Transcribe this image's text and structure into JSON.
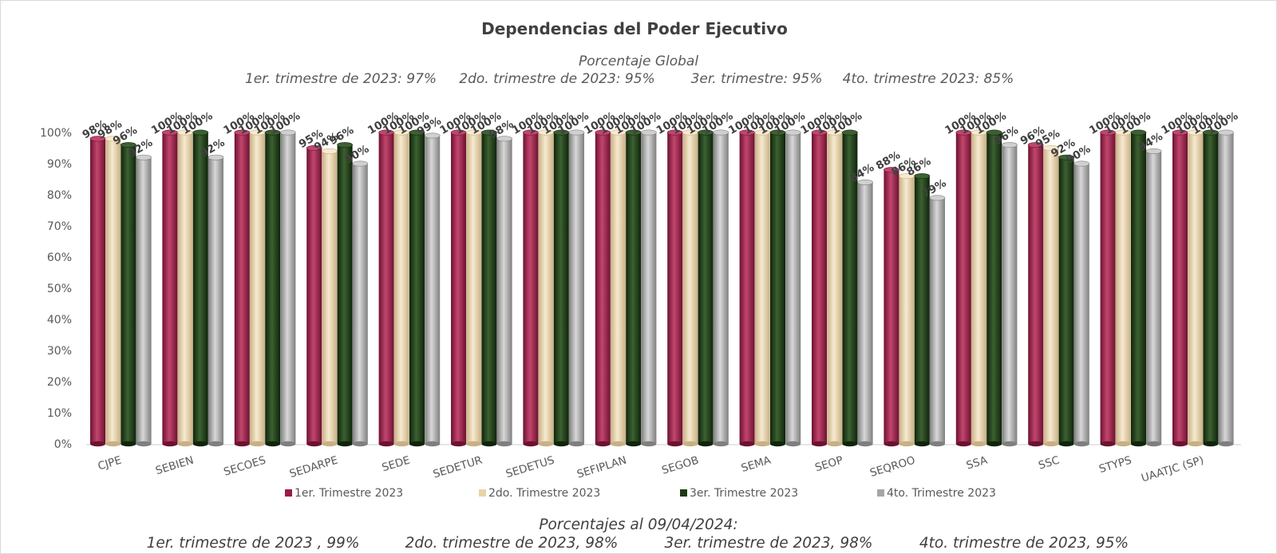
{
  "colors": {
    "series": [
      "#9b1c45",
      "#e9d3a6",
      "#1b3a13",
      "#a6a6a6"
    ],
    "series_dark": [
      "#6e1131",
      "#c8b084",
      "#0f240b",
      "#7f7f7f"
    ],
    "series_light": [
      "#c2466e",
      "#f7ead0",
      "#3c6131",
      "#d0d0d0"
    ]
  },
  "header": {
    "title": "Dependencias del Poder Ejecutivo",
    "subtitle": "Porcentaje Global",
    "global_items": [
      "1er. trimestre de 2023: 97%",
      "2do. trimestre de 2023: 95%",
      "3er. trimestre: 95%",
      "4to. trimestre 2023: 85%"
    ]
  },
  "footer": {
    "title": "Porcentajes al 09/04/2024:",
    "items": [
      "1er. trimestre de 2023 , 99%",
      "2do. trimestre de 2023, 98%",
      "3er. trimestre de 2023, 98%",
      "4to. trimestre de 2023, 95%"
    ]
  },
  "chart_data": {
    "type": "bar",
    "title": "Dependencias del Poder Ejecutivo",
    "ylim": [
      0,
      100
    ],
    "y_ticks": [
      "0%",
      "10%",
      "20%",
      "30%",
      "40%",
      "50%",
      "60%",
      "70%",
      "80%",
      "90%",
      "100%"
    ],
    "legend_position": "bottom",
    "categories": [
      "CJPE",
      "SEBIEN",
      "SECOES",
      "SEDARPE",
      "SEDE",
      "SEDETUR",
      "SEDETUS",
      "SEFIPLAN",
      "SEGOB",
      "SEMA",
      "SEOP",
      "SEQROO",
      "SSA",
      "SSC",
      "STYPS",
      "UAATJC (SP)"
    ],
    "series": [
      {
        "name": "1er. Trimestre 2023",
        "values": [
          98,
          100,
          100,
          95,
          100,
          100,
          100,
          100,
          100,
          100,
          100,
          88,
          100,
          96,
          100,
          100
        ]
      },
      {
        "name": "2do. Trimestre 2023",
        "values": [
          98,
          100,
          100,
          94,
          100,
          100,
          100,
          100,
          100,
          100,
          100,
          86,
          100,
          95,
          100,
          100
        ]
      },
      {
        "name": "3er. Trimestre 2023",
        "values": [
          96,
          100,
          100,
          96,
          100,
          100,
          100,
          100,
          100,
          100,
          100,
          86,
          100,
          92,
          100,
          100
        ]
      },
      {
        "name": "4to. Trimestre 2023",
        "values": [
          92,
          92,
          100,
          90,
          99,
          98,
          100,
          100,
          100,
          100,
          84,
          79,
          96,
          90,
          94,
          100
        ]
      }
    ],
    "data_labels": [
      [
        "98%",
        "100%",
        "100%",
        "95%",
        "100%",
        "100%",
        "100%",
        "100%",
        "100%",
        "100%",
        "100%",
        "88%",
        "100%",
        "96%",
        "100%",
        "100%"
      ],
      [
        "98%",
        "100%",
        "100%",
        "94%",
        "100%",
        "100%",
        "100%",
        "100%",
        "100%",
        "100%",
        "100%",
        "86%",
        "100%",
        "95%",
        "100%",
        "100%"
      ],
      [
        "96%",
        "100%",
        "100%",
        "96%",
        "100%",
        "100%",
        "100%",
        "100%",
        "100%",
        "100%",
        "100%",
        "86%",
        "100%",
        "92%",
        "100%",
        "100%"
      ],
      [
        "92%",
        "92%",
        "100%",
        "90%",
        "99%",
        "98%",
        "100%",
        "100%",
        "100%",
        "100%",
        "84%",
        "79%",
        "96%",
        "90%",
        "94%",
        "100%"
      ]
    ]
  }
}
